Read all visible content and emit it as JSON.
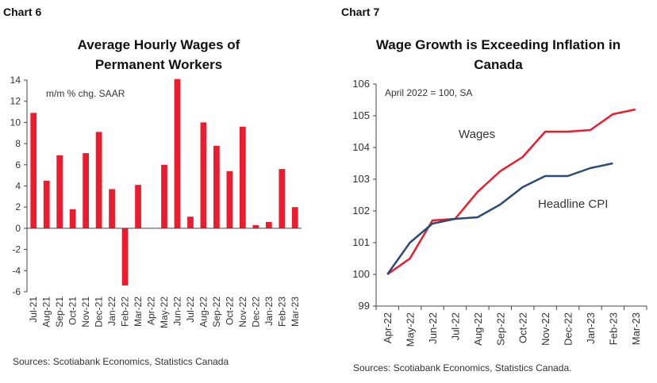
{
  "chart_data": [
    {
      "type": "bar",
      "chart_label": "Chart 6",
      "title_lines": [
        "Average Hourly Wages of",
        "Permanent Workers"
      ],
      "annotation": "m/m % chg. SAAR",
      "categories": [
        "Jul-21",
        "Aug-21",
        "Sep-21",
        "Oct-21",
        "Nov-21",
        "Dec-21",
        "Jan-22",
        "Feb-22",
        "Mar-22",
        "Apr-22",
        "May-22",
        "Jun-22",
        "Jul-22",
        "Aug-22",
        "Sep-22",
        "Oct-22",
        "Nov-22",
        "Dec-22",
        "Jan-23",
        "Feb-23",
        "Mar-23"
      ],
      "values": [
        10.9,
        4.5,
        6.9,
        1.8,
        7.1,
        9.1,
        3.7,
        -5.4,
        4.1,
        0,
        6.0,
        14.1,
        1.1,
        10.0,
        7.8,
        5.4,
        9.6,
        0.3,
        0.6,
        5.6,
        2.0
      ],
      "ylim": [
        -6,
        14
      ],
      "yticks": [
        -6,
        -4,
        -2,
        0,
        2,
        4,
        6,
        8,
        10,
        12,
        14
      ],
      "source": "Sources: Scotiabank Economics, Statistics Canada",
      "colors": {
        "bar": "#ec1b2e",
        "axis": "#444444"
      }
    },
    {
      "type": "line",
      "chart_label": "Chart 7",
      "title_lines": [
        "Wage Growth is Exceeding Inflation in",
        "Canada"
      ],
      "annotation": "April 2022 = 100, SA",
      "categories": [
        "Apr-22",
        "May-22",
        "Jun-22",
        "Jul-22",
        "Aug-22",
        "Sep-22",
        "Oct-22",
        "Nov-22",
        "Dec-22",
        "Jan-23",
        "Feb-23",
        "Mar-23"
      ],
      "series": [
        {
          "name": "Wages",
          "color": "#ec1b2e",
          "values": [
            100.0,
            100.5,
            101.7,
            101.75,
            102.6,
            103.25,
            103.7,
            104.5,
            104.5,
            104.55,
            105.05,
            105.2
          ]
        },
        {
          "name": "Headline CPI",
          "color": "#2a4a7a",
          "values": [
            100.0,
            101.0,
            101.6,
            101.75,
            101.8,
            102.2,
            102.75,
            103.1,
            103.1,
            103.35,
            103.5,
            null
          ]
        }
      ],
      "ylim": [
        99,
        106
      ],
      "yticks": [
        99,
        100,
        101,
        102,
        103,
        104,
        105,
        106
      ],
      "source": "Sources: Scotiabank Economics, Statistics Canada.",
      "colors": {
        "axis": "#444444"
      }
    }
  ]
}
